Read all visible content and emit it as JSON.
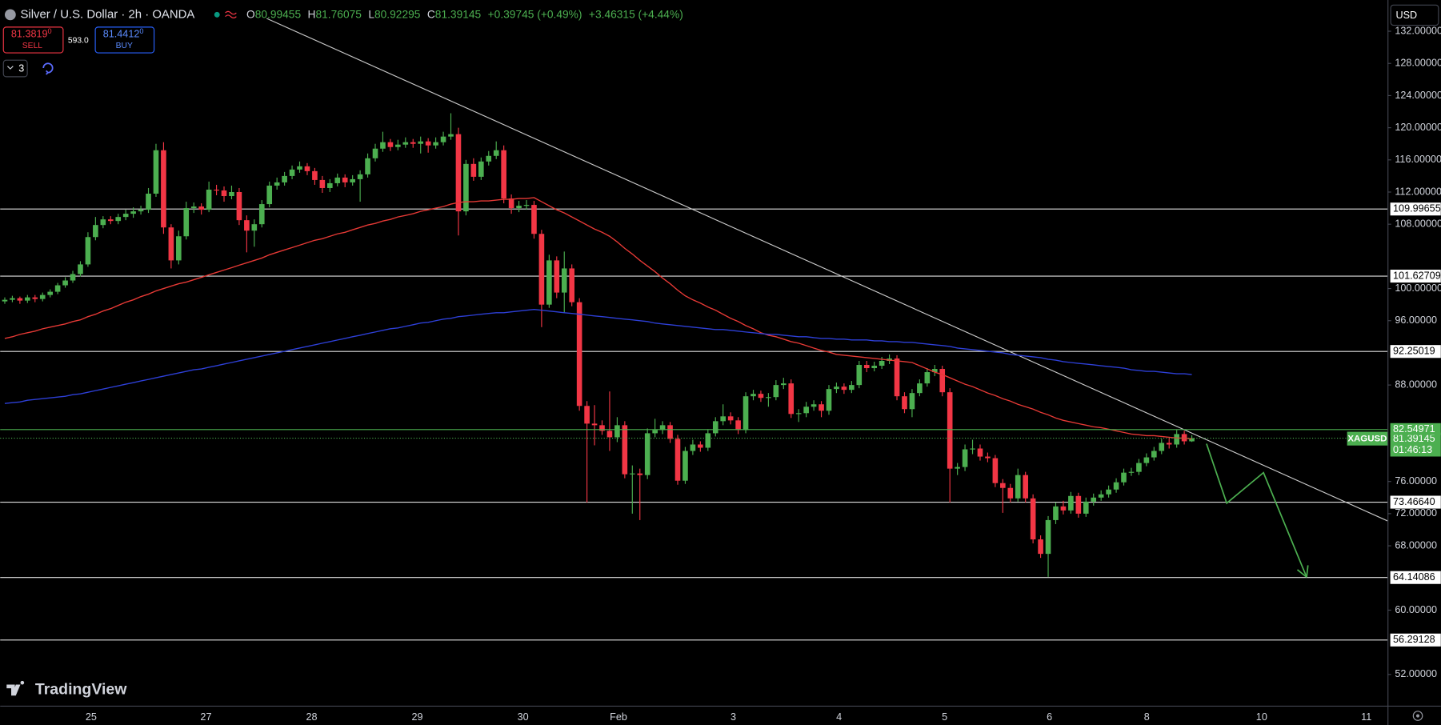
{
  "toolbar": {
    "sell_price": "81.3819",
    "sell_pip": "0",
    "sell_label": "SELL",
    "spread": "593.0",
    "buy_price": "81.4412",
    "buy_pip": "0",
    "buy_label": "BUY",
    "indicator_count": "3",
    "currency": "USD"
  },
  "brand": "TradingView",
  "chart_data": {
    "type": "candlestick",
    "title": "Silver / U.S. Dollar · 2h · OANDA",
    "ohlc_keys": [
      "O",
      "H",
      "L",
      "C"
    ],
    "change": "+0.39745 (+0.49%)",
    "change_total": "+3.46315 (+4.44%)",
    "up_color": "#4caf50",
    "down_color": "#f23645",
    "candles": [
      [
        98.4,
        98.9,
        98.1,
        98.6
      ],
      [
        98.6,
        99.1,
        98.3,
        98.8
      ],
      [
        98.8,
        99.0,
        98.1,
        98.5
      ],
      [
        98.5,
        99.2,
        98.2,
        98.9
      ],
      [
        98.9,
        99.2,
        98.3,
        98.7
      ],
      [
        98.7,
        99.5,
        98.4,
        99.2
      ],
      [
        99.2,
        99.9,
        98.9,
        99.6
      ],
      [
        99.6,
        100.7,
        99.3,
        100.4
      ],
      [
        100.4,
        101.4,
        100.1,
        101.0
      ],
      [
        101.0,
        102.2,
        100.7,
        101.8
      ],
      [
        101.8,
        103.4,
        101.5,
        103.0
      ],
      [
        103.0,
        107.0,
        102.7,
        106.4
      ],
      [
        106.4,
        108.9,
        106.0,
        107.9
      ],
      [
        107.9,
        109.0,
        107.5,
        108.6
      ],
      [
        108.6,
        109.0,
        108.0,
        108.4
      ],
      [
        108.4,
        109.3,
        108.0,
        108.9
      ],
      [
        108.9,
        109.8,
        108.5,
        109.3
      ],
      [
        109.3,
        110.1,
        108.8,
        109.6
      ],
      [
        109.6,
        110.3,
        109.2,
        109.8
      ],
      [
        109.8,
        112.5,
        109.4,
        111.8
      ],
      [
        111.8,
        118.0,
        111.4,
        117.2
      ],
      [
        117.2,
        118.2,
        106.8,
        107.6
      ],
      [
        107.6,
        108.0,
        102.5,
        103.5
      ],
      [
        103.5,
        107.2,
        103.0,
        106.5
      ],
      [
        106.5,
        110.8,
        106.1,
        110.0
      ],
      [
        110.0,
        110.7,
        109.4,
        110.2
      ],
      [
        110.2,
        110.6,
        109.2,
        109.8
      ],
      [
        109.8,
        113.3,
        109.5,
        112.3
      ],
      [
        112.3,
        112.9,
        111.6,
        112.2
      ],
      [
        112.2,
        112.7,
        110.8,
        111.5
      ],
      [
        111.5,
        112.8,
        111.1,
        112.0
      ],
      [
        112.0,
        112.5,
        107.9,
        108.5
      ],
      [
        108.5,
        109.1,
        104.5,
        107.2
      ],
      [
        107.2,
        108.6,
        105.2,
        108.0
      ],
      [
        108.0,
        111.0,
        107.6,
        110.5
      ],
      [
        110.5,
        113.3,
        110.1,
        112.8
      ],
      [
        112.8,
        113.8,
        112.3,
        113.2
      ],
      [
        113.2,
        114.5,
        112.8,
        114.0
      ],
      [
        114.0,
        115.3,
        113.6,
        114.8
      ],
      [
        114.8,
        115.8,
        114.4,
        115.2
      ],
      [
        115.2,
        115.6,
        114.1,
        114.6
      ],
      [
        114.6,
        115.0,
        112.9,
        113.5
      ],
      [
        113.5,
        114.0,
        111.9,
        112.5
      ],
      [
        112.5,
        113.6,
        112.0,
        113.1
      ],
      [
        113.1,
        114.3,
        112.7,
        113.8
      ],
      [
        113.8,
        114.2,
        112.6,
        113.2
      ],
      [
        113.2,
        114.1,
        112.8,
        113.6
      ],
      [
        113.6,
        114.7,
        110.8,
        114.2
      ],
      [
        114.2,
        116.8,
        113.8,
        116.2
      ],
      [
        116.2,
        118.0,
        115.8,
        117.4
      ],
      [
        117.4,
        119.5,
        117.0,
        118.2
      ],
      [
        118.2,
        118.6,
        117.1,
        117.6
      ],
      [
        117.6,
        118.5,
        117.2,
        117.9
      ],
      [
        117.9,
        118.8,
        117.5,
        118.2
      ],
      [
        118.2,
        118.6,
        117.5,
        118.0
      ],
      [
        118.0,
        118.9,
        116.8,
        118.3
      ],
      [
        118.3,
        118.7,
        116.9,
        117.8
      ],
      [
        117.8,
        118.8,
        117.4,
        118.2
      ],
      [
        118.2,
        119.5,
        117.8,
        118.9
      ],
      [
        118.9,
        121.8,
        118.5,
        119.2
      ],
      [
        119.2,
        120.0,
        106.6,
        109.6
      ],
      [
        109.6,
        116.0,
        109.1,
        115.5
      ],
      [
        115.5,
        116.2,
        113.4,
        113.9
      ],
      [
        113.9,
        116.3,
        113.5,
        115.8
      ],
      [
        115.8,
        117.1,
        115.3,
        116.5
      ],
      [
        116.5,
        118.3,
        116.1,
        117.2
      ],
      [
        117.2,
        117.8,
        110.6,
        111.2
      ],
      [
        111.2,
        111.7,
        109.3,
        110.0
      ],
      [
        110.0,
        110.9,
        109.5,
        110.3
      ],
      [
        110.3,
        111.0,
        109.8,
        110.4
      ],
      [
        110.4,
        110.9,
        106.2,
        106.8
      ],
      [
        106.8,
        107.3,
        95.2,
        98.0
      ],
      [
        98.0,
        104.2,
        97.6,
        103.5
      ],
      [
        103.5,
        104.0,
        98.8,
        99.5
      ],
      [
        99.5,
        104.6,
        97.0,
        102.5
      ],
      [
        102.5,
        103.0,
        97.8,
        98.3
      ],
      [
        98.3,
        98.8,
        84.8,
        85.4
      ],
      [
        85.4,
        86.0,
        73.4,
        83.2
      ],
      [
        83.2,
        85.5,
        80.5,
        83.0
      ],
      [
        83.0,
        83.6,
        81.8,
        82.3
      ],
      [
        82.3,
        87.2,
        79.8,
        81.5
      ],
      [
        81.5,
        84.0,
        80.9,
        83.0
      ],
      [
        83.0,
        83.5,
        76.4,
        76.9
      ],
      [
        76.9,
        78.0,
        72.0,
        77.0
      ],
      [
        77.0,
        77.6,
        71.2,
        76.8
      ],
      [
        76.8,
        82.6,
        76.3,
        82.0
      ],
      [
        82.0,
        83.8,
        81.5,
        82.4
      ],
      [
        82.4,
        83.5,
        81.9,
        83.0
      ],
      [
        83.0,
        83.4,
        80.8,
        81.3
      ],
      [
        81.3,
        81.8,
        75.6,
        76.1
      ],
      [
        76.1,
        80.3,
        75.7,
        79.8
      ],
      [
        79.8,
        81.2,
        79.3,
        80.6
      ],
      [
        80.6,
        81.0,
        79.7,
        80.2
      ],
      [
        80.2,
        82.5,
        79.8,
        82.0
      ],
      [
        82.0,
        84.0,
        81.6,
        83.5
      ],
      [
        83.5,
        85.6,
        83.0,
        84.1
      ],
      [
        84.1,
        84.6,
        83.1,
        83.6
      ],
      [
        83.6,
        84.0,
        81.9,
        82.4
      ],
      [
        82.4,
        87.1,
        82.0,
        86.6
      ],
      [
        86.6,
        87.4,
        86.1,
        86.9
      ],
      [
        86.9,
        87.3,
        85.9,
        86.4
      ],
      [
        86.4,
        87.0,
        85.3,
        86.5
      ],
      [
        86.5,
        88.6,
        86.1,
        88.0
      ],
      [
        88.0,
        88.9,
        87.5,
        88.2
      ],
      [
        88.2,
        88.7,
        83.9,
        84.4
      ],
      [
        84.4,
        85.0,
        83.4,
        84.5
      ],
      [
        84.5,
        85.9,
        84.0,
        85.3
      ],
      [
        85.3,
        86.1,
        84.8,
        85.6
      ],
      [
        85.6,
        86.0,
        84.0,
        84.8
      ],
      [
        84.8,
        88.0,
        84.3,
        87.5
      ],
      [
        87.5,
        88.3,
        87.0,
        87.8
      ],
      [
        87.8,
        88.2,
        86.9,
        87.4
      ],
      [
        87.4,
        88.5,
        87.0,
        88.0
      ],
      [
        88.0,
        91.0,
        87.6,
        90.5
      ],
      [
        90.5,
        91.0,
        89.6,
        90.1
      ],
      [
        90.1,
        90.9,
        89.7,
        90.4
      ],
      [
        90.4,
        91.5,
        90.0,
        91.0
      ],
      [
        91.0,
        91.8,
        90.6,
        91.3
      ],
      [
        91.3,
        91.7,
        86.1,
        86.6
      ],
      [
        86.6,
        87.1,
        84.5,
        85.0
      ],
      [
        85.0,
        87.5,
        84.0,
        87.0
      ],
      [
        87.0,
        88.7,
        86.6,
        88.2
      ],
      [
        88.2,
        90.1,
        87.8,
        89.6
      ],
      [
        89.6,
        90.5,
        89.1,
        90.0
      ],
      [
        90.0,
        90.4,
        86.6,
        87.1
      ],
      [
        87.1,
        87.6,
        73.4,
        77.6
      ],
      [
        77.6,
        78.3,
        76.8,
        77.8
      ],
      [
        77.8,
        80.6,
        77.3,
        80.0
      ],
      [
        80.0,
        81.2,
        79.4,
        80.1
      ],
      [
        80.1,
        80.6,
        78.6,
        79.1
      ],
      [
        79.1,
        79.6,
        78.4,
        78.9
      ],
      [
        78.9,
        79.3,
        75.3,
        75.8
      ],
      [
        75.8,
        76.3,
        72.1,
        75.2
      ],
      [
        75.2,
        75.7,
        73.4,
        73.9
      ],
      [
        73.9,
        77.6,
        73.5,
        76.8
      ],
      [
        76.8,
        77.2,
        73.4,
        73.9
      ],
      [
        73.9,
        74.4,
        68.3,
        68.8
      ],
      [
        68.8,
        69.3,
        66.5,
        67.0
      ],
      [
        67.0,
        71.7,
        64.14,
        71.2
      ],
      [
        71.2,
        73.4,
        70.7,
        72.9
      ],
      [
        72.9,
        73.6,
        71.9,
        72.4
      ],
      [
        72.4,
        74.7,
        72.0,
        74.2
      ],
      [
        74.2,
        74.6,
        71.5,
        72.0
      ],
      [
        72.0,
        74.0,
        71.6,
        73.5
      ],
      [
        73.5,
        74.5,
        73.0,
        74.0
      ],
      [
        74.0,
        74.9,
        73.6,
        74.4
      ],
      [
        74.4,
        75.5,
        74.0,
        75.0
      ],
      [
        75.0,
        76.4,
        74.6,
        75.9
      ],
      [
        75.9,
        77.6,
        75.5,
        77.1
      ],
      [
        77.1,
        77.7,
        76.7,
        77.2
      ],
      [
        77.2,
        78.8,
        76.8,
        78.3
      ],
      [
        78.3,
        79.5,
        77.9,
        79.0
      ],
      [
        79.0,
        80.3,
        78.6,
        79.8
      ],
      [
        79.8,
        81.3,
        79.4,
        80.8
      ],
      [
        80.8,
        81.4,
        80.1,
        80.6
      ],
      [
        80.6,
        82.4,
        80.2,
        81.9
      ],
      [
        81.9,
        82.3,
        80.6,
        81.0
      ],
      [
        80.99455,
        81.76075,
        80.92295,
        81.39145
      ]
    ],
    "series": [
      {
        "color": "#e53935",
        "values": [
          93.8,
          94.0,
          94.3,
          94.5,
          94.7,
          95.0,
          95.2,
          95.4,
          95.6,
          95.9,
          96.1,
          96.5,
          96.8,
          97.2,
          97.5,
          97.9,
          98.3,
          98.6,
          99.0,
          99.3,
          99.7,
          100.0,
          100.3,
          100.6,
          100.8,
          101.1,
          101.4,
          101.7,
          102.0,
          102.3,
          102.6,
          102.9,
          103.2,
          103.5,
          103.8,
          104.2,
          104.5,
          104.8,
          105.1,
          105.4,
          105.7,
          106.0,
          106.2,
          106.5,
          106.8,
          107.0,
          107.3,
          107.6,
          107.9,
          108.1,
          108.4,
          108.6,
          108.9,
          109.1,
          109.3,
          109.6,
          109.8,
          110.0,
          110.2,
          110.5,
          110.7,
          110.8,
          110.8,
          110.9,
          110.9,
          111.0,
          111.1,
          111.1,
          111.2,
          111.2,
          111.3,
          110.8,
          110.3,
          109.8,
          109.4,
          108.9,
          108.4,
          107.9,
          107.4,
          107.0,
          106.5,
          105.8,
          105.0,
          104.3,
          103.5,
          102.8,
          102.1,
          101.3,
          100.6,
          99.8,
          99.1,
          98.6,
          98.2,
          97.7,
          97.3,
          96.8,
          96.3,
          95.9,
          95.4,
          95.0,
          94.5,
          94.2,
          94.0,
          93.7,
          93.4,
          93.2,
          92.9,
          92.6,
          92.3,
          92.1,
          91.8,
          91.7,
          91.6,
          91.5,
          91.4,
          91.3,
          91.2,
          91.1,
          91.0,
          90.9,
          90.8,
          90.4,
          90.0,
          89.6,
          89.3,
          88.9,
          88.5,
          88.1,
          87.8,
          87.4,
          87.0,
          86.7,
          86.3,
          86.0,
          85.6,
          85.3,
          85.0,
          84.6,
          84.3,
          83.9,
          83.6,
          83.4,
          83.2,
          83.0,
          82.8,
          82.7,
          82.5,
          82.3,
          82.1,
          81.9,
          81.8,
          81.7,
          81.7,
          81.6,
          81.5,
          81.4,
          81.4,
          81.3
        ]
      },
      {
        "color": "#2d3fd6",
        "values": [
          85.7,
          85.8,
          85.9,
          86.1,
          86.2,
          86.3,
          86.4,
          86.5,
          86.6,
          86.8,
          86.9,
          87.1,
          87.3,
          87.5,
          87.7,
          87.9,
          88.1,
          88.3,
          88.5,
          88.7,
          88.9,
          89.1,
          89.3,
          89.5,
          89.7,
          89.9,
          90.0,
          90.2,
          90.4,
          90.6,
          90.8,
          91.0,
          91.2,
          91.4,
          91.6,
          91.8,
          92.0,
          92.2,
          92.4,
          92.6,
          92.8,
          93.0,
          93.2,
          93.4,
          93.6,
          93.8,
          94.0,
          94.2,
          94.4,
          94.6,
          94.8,
          95.0,
          95.1,
          95.3,
          95.5,
          95.7,
          95.8,
          96.0,
          96.2,
          96.3,
          96.5,
          96.6,
          96.7,
          96.8,
          96.9,
          97.0,
          97.0,
          97.1,
          97.2,
          97.3,
          97.4,
          97.3,
          97.2,
          97.1,
          97.0,
          96.9,
          96.8,
          96.7,
          96.6,
          96.5,
          96.4,
          96.3,
          96.2,
          96.1,
          96.0,
          95.9,
          95.7,
          95.6,
          95.5,
          95.4,
          95.3,
          95.2,
          95.1,
          95.0,
          94.9,
          94.9,
          94.8,
          94.7,
          94.6,
          94.5,
          94.4,
          94.3,
          94.3,
          94.2,
          94.1,
          94.0,
          94.0,
          93.9,
          93.8,
          93.8,
          93.7,
          93.7,
          93.6,
          93.6,
          93.6,
          93.5,
          93.5,
          93.4,
          93.4,
          93.3,
          93.3,
          93.2,
          93.1,
          93.0,
          92.9,
          92.8,
          92.6,
          92.5,
          92.4,
          92.3,
          92.2,
          92.1,
          92.0,
          91.8,
          91.7,
          91.6,
          91.5,
          91.4,
          91.2,
          91.1,
          90.9,
          90.8,
          90.7,
          90.6,
          90.5,
          90.4,
          90.3,
          90.2,
          90.1,
          89.9,
          89.8,
          89.7,
          89.7,
          89.6,
          89.5,
          89.4,
          89.4,
          89.3
        ]
      }
    ],
    "ylim": [
      48.114,
      135.886
    ],
    "yticks": [
      {
        "value": 132,
        "label": "132.00000"
      },
      {
        "value": 128,
        "label": "128.00000"
      },
      {
        "value": 124,
        "label": "124.00000"
      },
      {
        "value": 120,
        "label": "120.00000"
      },
      {
        "value": 116,
        "label": "116.00000"
      },
      {
        "value": 112,
        "label": "112.00000"
      },
      {
        "value": 108,
        "label": "108.00000"
      },
      {
        "value": 100,
        "label": "100.00000"
      },
      {
        "value": 96,
        "label": "96.00000"
      },
      {
        "value": 88,
        "label": "88.00000"
      },
      {
        "value": 76,
        "label": "76.00000"
      },
      {
        "value": 72,
        "label": "72.00000"
      },
      {
        "value": 68,
        "label": "68.00000"
      },
      {
        "value": 60,
        "label": "60.00000"
      },
      {
        "value": 52,
        "label": "52.00000"
      }
    ],
    "xtick_labels": [
      "25",
      "27",
      "28",
      "29",
      "30",
      "Feb",
      "3",
      "4",
      "5",
      "6",
      "8",
      "10",
      "11"
    ],
    "levels": [
      109.99655,
      101.62709,
      92.25019,
      {
        "value": 73.4664,
        "label": "73.46640"
      },
      64.14086,
      56.29128
    ],
    "resistance": 82.54971,
    "resistance_color": "#4caf50",
    "symbol_tag": "XAGUSD",
    "countdown": "01:46:13",
    "trendline": [
      133.6,
      71.1
    ],
    "projection": {
      "color": "#4caf50",
      "values": [
        80.7,
        73.3,
        77.1,
        64.1
      ]
    }
  }
}
